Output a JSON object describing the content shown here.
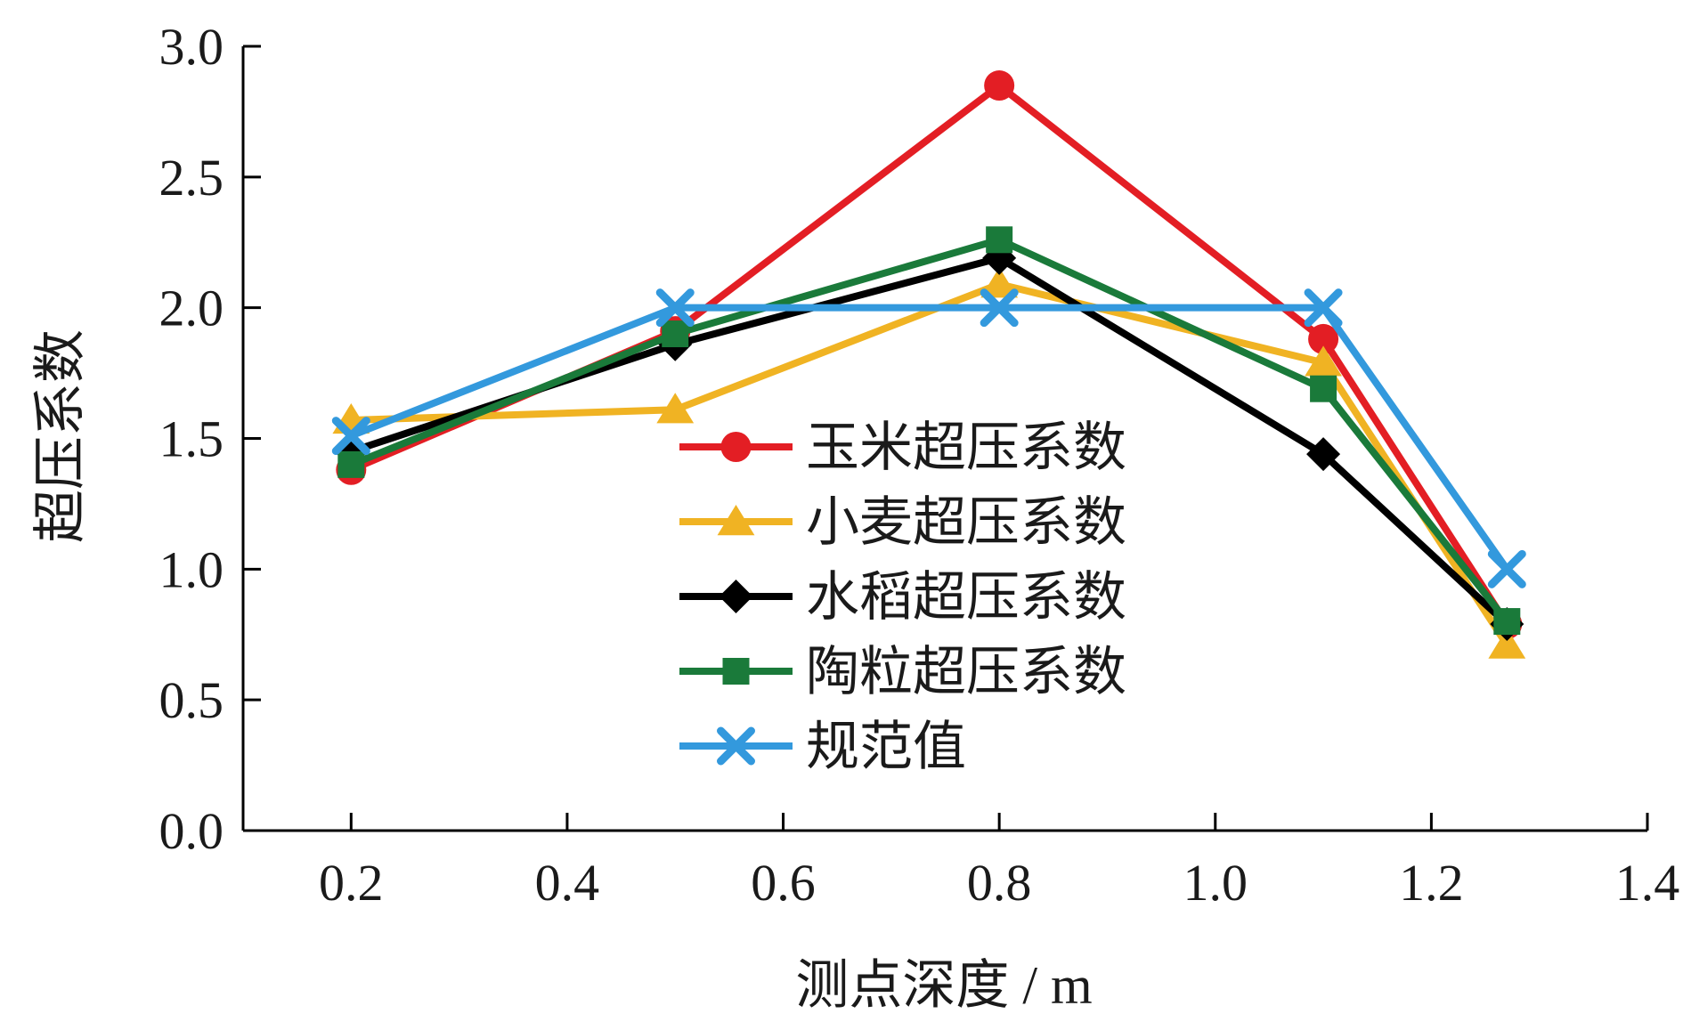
{
  "chart_data": {
    "type": "line",
    "xlabel": "测点深度 / m",
    "ylabel": "超压系数",
    "xlim": [
      0.1,
      1.4
    ],
    "ylim": [
      0.0,
      3.0
    ],
    "x_ticks": [
      "0.2",
      "0.4",
      "0.6",
      "0.8",
      "1.0",
      "1.2",
      "1.4"
    ],
    "x_tick_values": [
      0.2,
      0.4,
      0.6,
      0.8,
      1.0,
      1.2,
      1.4
    ],
    "y_ticks": [
      "0.0",
      "0.5",
      "1.0",
      "1.5",
      "2.0",
      "2.5",
      "3.0"
    ],
    "y_tick_values": [
      0.0,
      0.5,
      1.0,
      1.5,
      2.0,
      2.5,
      3.0
    ],
    "grid": false,
    "legend_position": "center",
    "x": [
      0.2,
      0.5,
      0.8,
      1.1,
      1.27
    ],
    "series": [
      {
        "name": "玉米超压系数",
        "color": "#e31e24",
        "marker": "circle",
        "values": [
          1.38,
          1.91,
          2.85,
          1.88,
          0.79
        ]
      },
      {
        "name": "小麦超压系数",
        "color": "#f0b323",
        "marker": "triangle",
        "values": [
          1.57,
          1.61,
          2.09,
          1.79,
          0.71
        ]
      },
      {
        "name": "水稻超压系数",
        "color": "#000000",
        "marker": "diamond",
        "values": [
          1.45,
          1.86,
          2.19,
          1.44,
          0.79
        ]
      },
      {
        "name": "陶粒超压系数",
        "color": "#1a7a3a",
        "marker": "square",
        "values": [
          1.4,
          1.9,
          2.26,
          1.69,
          0.8
        ]
      },
      {
        "name": "规范值",
        "color": "#3399dd",
        "marker": "x",
        "values": [
          1.51,
          2.0,
          2.0,
          2.0,
          1.0
        ]
      }
    ]
  }
}
